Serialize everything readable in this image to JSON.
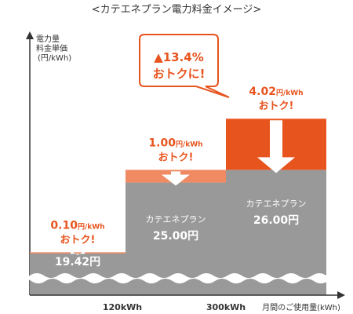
{
  "chart_data": {
    "type": "bar",
    "title": "<カテエネプラン電力料金イメージ>",
    "ylabel_lines": [
      "電力量",
      "料金単価",
      "(円/kWh)"
    ],
    "xlabel": "月間のご使用量(kWh)",
    "x_tick_labels": [
      "120kWh",
      "300kWh"
    ],
    "categories": [
      "0-120kWh",
      "120-300kWh",
      "300kWh+"
    ],
    "series": [
      {
        "name": "カテエネプラン",
        "values": [
          19.42,
          25.0,
          26.0
        ]
      }
    ],
    "savings": [
      0.1,
      1.0,
      4.02
    ],
    "bar_labels": [
      {
        "plan": "カテエネプラン",
        "price": "19.42円"
      },
      {
        "plan": "カテエネプラン",
        "price": "25.00円"
      },
      {
        "plan": "カテエネプラン",
        "price": "26.00円"
      }
    ],
    "savings_labels": [
      {
        "amount": "0.10",
        "unit": "円/kWh",
        "text": "おトク!"
      },
      {
        "amount": "1.00",
        "unit": "円/kWh",
        "text": "おトク!"
      },
      {
        "amount": "4.02",
        "unit": "円/kWh",
        "text": "おトク!"
      }
    ],
    "callout": {
      "line1": "▲13.4%",
      "line2": "おトクに!"
    },
    "colors": {
      "plan_bar": "#999999",
      "saving_light": "#ef8a63",
      "saving_dark": "#e8541e",
      "accent_text": "#e8541e",
      "axis": "#333333"
    }
  }
}
